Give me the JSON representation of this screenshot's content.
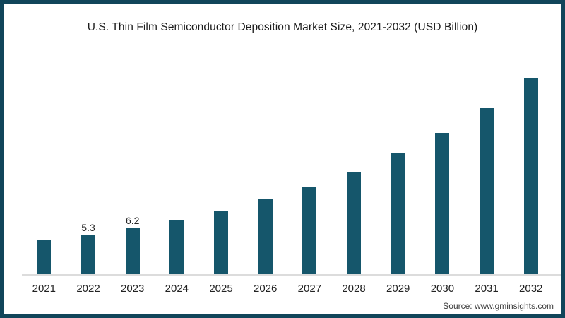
{
  "chart_data": {
    "type": "bar",
    "title": "U.S. Thin Film Semiconductor Deposition Market Size, 2021-2032 (USD Billion)",
    "categories": [
      "2021",
      "2022",
      "2023",
      "2024",
      "2025",
      "2026",
      "2027",
      "2028",
      "2029",
      "2030",
      "2031",
      "2032"
    ],
    "values": [
      4.5,
      5.3,
      6.2,
      7.3,
      8.5,
      10.0,
      11.7,
      13.7,
      16.1,
      18.9,
      22.2,
      26.1
    ],
    "data_labels": {
      "2022": "5.3",
      "2023": "6.2"
    },
    "xlabel": "",
    "ylabel": "",
    "ylim": [
      0,
      28
    ],
    "grid": false,
    "legend": "none",
    "bar_color": "#15566b",
    "axis_line_color": "#dcdcdc"
  },
  "source": {
    "label": "Source: www.gminsights.com"
  },
  "frame": {
    "border_color": "#11455a"
  }
}
